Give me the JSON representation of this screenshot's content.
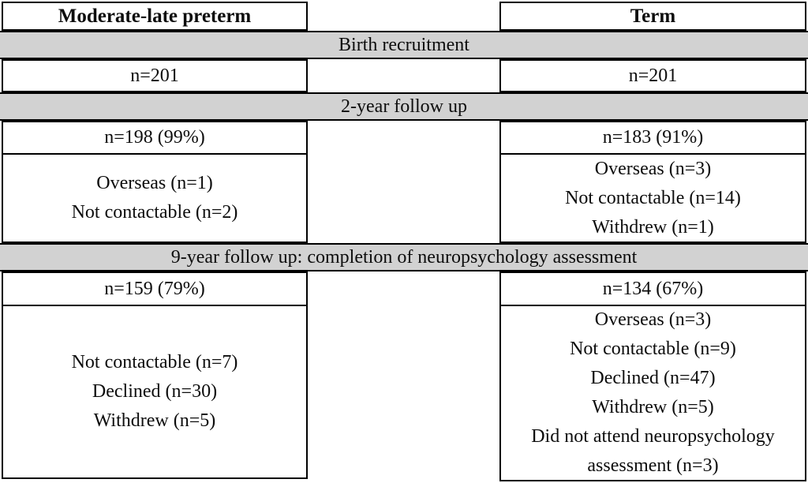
{
  "figure": {
    "colors": {
      "band_bg": "#d2d2d2",
      "border": "#000000",
      "page_bg": "#ffffff"
    },
    "columns": [
      {
        "header": "Moderate-late preterm"
      },
      {
        "header": "Term"
      }
    ],
    "stages": [
      {
        "band": "Birth recruitment",
        "left": {
          "n": "n=201",
          "reasons": []
        },
        "right": {
          "n": "n=201",
          "reasons": []
        }
      },
      {
        "band": "2-year follow up",
        "left": {
          "n": "n=198 (99%)",
          "reasons": [
            "Overseas (n=1)",
            "Not contactable (n=2)"
          ]
        },
        "right": {
          "n": "n=183 (91%)",
          "reasons": [
            "Overseas (n=3)",
            "Not contactable (n=14)",
            "Withdrew (n=1)"
          ]
        }
      },
      {
        "band": "9-year follow up: completion of neuropsychology assessment",
        "left": {
          "n": "n=159 (79%)",
          "reasons": [
            "Not contactable (n=7)",
            "Declined (n=30)",
            "Withdrew (n=5)"
          ]
        },
        "right": {
          "n": "n=134 (67%)",
          "reasons": [
            "Overseas (n=3)",
            "Not contactable (n=9)",
            "Declined (n=47)",
            "Withdrew (n=5)",
            "Did not attend neuropsychology assessment (n=3)"
          ]
        }
      }
    ]
  }
}
